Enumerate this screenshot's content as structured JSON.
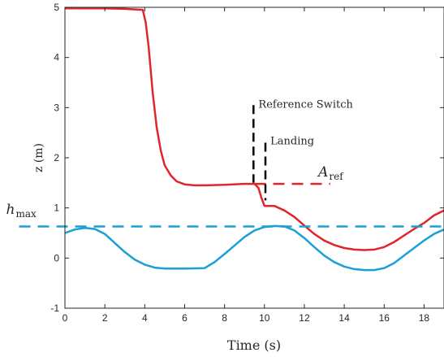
{
  "chart_data": {
    "type": "line",
    "title": "",
    "xlabel": "Time (s)",
    "ylabel": "z (m)",
    "xlim": [
      0,
      19
    ],
    "ylim": [
      -1,
      5
    ],
    "xticks": [
      "0",
      "2",
      "4",
      "6",
      "8",
      "10",
      "12",
      "14",
      "16",
      "18"
    ],
    "yticks": [
      "-1",
      "0",
      "1",
      "2",
      "3",
      "4",
      "5"
    ],
    "grid": false,
    "legend": "none",
    "series": [
      {
        "color": "#e0262b",
        "style": "solid",
        "points": [
          [
            0,
            4.98
          ],
          [
            1,
            4.98
          ],
          [
            2,
            4.98
          ],
          [
            3,
            4.97
          ],
          [
            3.9,
            4.95
          ],
          [
            4.05,
            4.7
          ],
          [
            4.2,
            4.2
          ],
          [
            4.4,
            3.3
          ],
          [
            4.6,
            2.6
          ],
          [
            4.8,
            2.15
          ],
          [
            5.0,
            1.85
          ],
          [
            5.3,
            1.65
          ],
          [
            5.6,
            1.53
          ],
          [
            6.0,
            1.47
          ],
          [
            6.5,
            1.45
          ],
          [
            7.0,
            1.45
          ],
          [
            8.0,
            1.46
          ],
          [
            9.0,
            1.48
          ],
          [
            9.5,
            1.48
          ],
          [
            9.7,
            1.4
          ],
          [
            9.85,
            1.2
          ],
          [
            10.0,
            1.04
          ],
          [
            10.5,
            1.04
          ],
          [
            11.0,
            0.95
          ],
          [
            11.5,
            0.82
          ],
          [
            12.0,
            0.65
          ],
          [
            12.5,
            0.48
          ],
          [
            13.0,
            0.35
          ],
          [
            13.5,
            0.26
          ],
          [
            14.0,
            0.2
          ],
          [
            14.5,
            0.17
          ],
          [
            15.0,
            0.16
          ],
          [
            15.5,
            0.17
          ],
          [
            16.0,
            0.22
          ],
          [
            16.5,
            0.32
          ],
          [
            17.0,
            0.45
          ],
          [
            17.5,
            0.58
          ],
          [
            18.0,
            0.7
          ],
          [
            18.5,
            0.85
          ],
          [
            19.0,
            0.95
          ]
        ]
      },
      {
        "color": "#1a9fd6",
        "style": "solid",
        "points": [
          [
            0,
            0.5
          ],
          [
            0.5,
            0.57
          ],
          [
            1.0,
            0.6
          ],
          [
            1.5,
            0.58
          ],
          [
            2.0,
            0.48
          ],
          [
            2.5,
            0.3
          ],
          [
            3.0,
            0.12
          ],
          [
            3.5,
            -0.03
          ],
          [
            4.0,
            -0.13
          ],
          [
            4.5,
            -0.19
          ],
          [
            5.0,
            -0.21
          ],
          [
            6.0,
            -0.21
          ],
          [
            7.0,
            -0.2
          ],
          [
            7.5,
            -0.08
          ],
          [
            8.0,
            0.08
          ],
          [
            8.5,
            0.25
          ],
          [
            9.0,
            0.42
          ],
          [
            9.5,
            0.55
          ],
          [
            10.0,
            0.62
          ],
          [
            10.5,
            0.64
          ],
          [
            11.0,
            0.63
          ],
          [
            11.5,
            0.55
          ],
          [
            12.0,
            0.4
          ],
          [
            12.5,
            0.22
          ],
          [
            13.0,
            0.05
          ],
          [
            13.5,
            -0.08
          ],
          [
            14.0,
            -0.17
          ],
          [
            14.5,
            -0.22
          ],
          [
            15.0,
            -0.24
          ],
          [
            15.5,
            -0.24
          ],
          [
            16.0,
            -0.2
          ],
          [
            16.5,
            -0.1
          ],
          [
            17.0,
            0.05
          ],
          [
            17.5,
            0.2
          ],
          [
            18.0,
            0.35
          ],
          [
            18.5,
            0.48
          ],
          [
            19.0,
            0.57
          ]
        ]
      },
      {
        "color": "#1a9fd6",
        "style": "dashed",
        "points": [
          [
            -2.3,
            0.63
          ],
          [
            19,
            0.63
          ]
        ]
      },
      {
        "color": "#e0262b",
        "style": "dashed",
        "points": [
          [
            9.5,
            1.48
          ],
          [
            13.3,
            1.48
          ]
        ]
      },
      {
        "color": "#000000",
        "style": "dashed",
        "points": [
          [
            9.45,
            3.05
          ],
          [
            9.45,
            1.5
          ]
        ]
      },
      {
        "color": "#000000",
        "style": "dashed",
        "points": [
          [
            10.05,
            2.3
          ],
          [
            10.05,
            1.15
          ]
        ]
      }
    ],
    "annotations": [
      {
        "text": "Reference Switch",
        "x": 9.7,
        "y": 3.0
      },
      {
        "text": "Landing",
        "x": 10.3,
        "y": 2.27
      },
      {
        "text": "A",
        "sub": "ref",
        "x": 12.7,
        "y": 1.63
      },
      {
        "text": "h",
        "sub": "max",
        "x": -2.95,
        "y": 0.88
      }
    ]
  }
}
